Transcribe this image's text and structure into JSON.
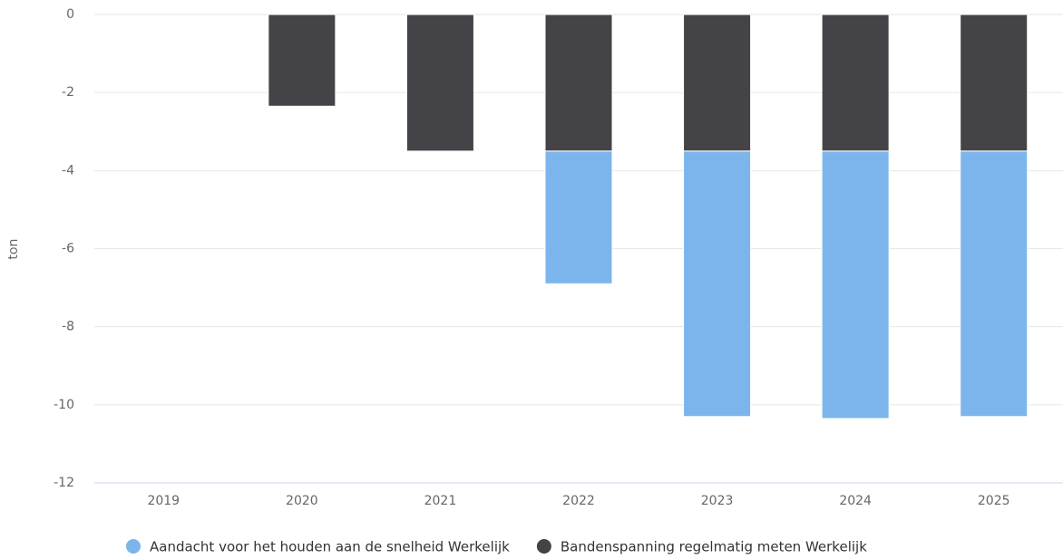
{
  "chart_data": {
    "type": "stacked_bar",
    "y_label": "ton",
    "categories": [
      "2019",
      "2020",
      "2021",
      "2022",
      "2023",
      "2024",
      "2025"
    ],
    "series": [
      {
        "name": "Aandacht voor het houden aan de snelheid Werkelijk",
        "color": "#7cb5ec",
        "values": [
          null,
          null,
          null,
          -3.4,
          -6.8,
          -6.85,
          -6.8
        ]
      },
      {
        "name": "Bandenspanning regelmatig meten Werkelijk",
        "color": "#434348",
        "values": [
          null,
          -2.35,
          -3.5,
          -3.5,
          -3.5,
          -3.5,
          -3.5
        ]
      }
    ],
    "ylim": [
      -12,
      0
    ],
    "yticks": [
      0,
      -2,
      -4,
      -6,
      -8,
      -10,
      -12
    ],
    "grid": true
  }
}
